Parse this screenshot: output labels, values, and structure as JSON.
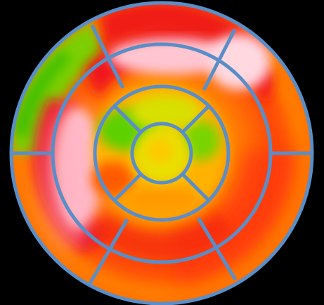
{
  "image": {
    "kind": "polar-map-bullseye",
    "rings": 4,
    "segment_grid": [
      6,
      6,
      4,
      1
    ],
    "background": "#000000",
    "grid_color": "#5a8ec8",
    "colors": {
      "white_high": "#ffd8e0",
      "pink": "#ff9aae",
      "red": "#f5141e",
      "orange_red": "#ff4a0a",
      "orange": "#ff8a00",
      "yellow": "#ffd400",
      "yellow_green": "#c8e000",
      "green": "#54c800"
    }
  }
}
